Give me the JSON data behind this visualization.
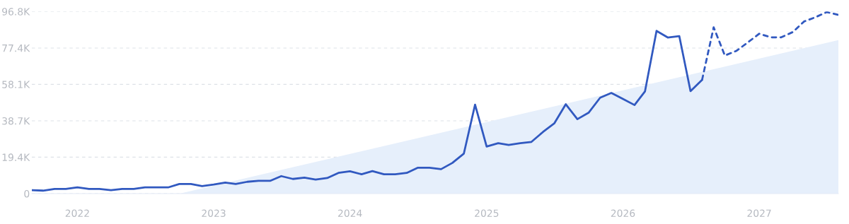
{
  "chart_data": {
    "type": "line",
    "grid": "y",
    "marker": "none",
    "xlim": [
      "2021-09",
      "2027-08"
    ],
    "xticks": [
      {
        "value": "2022-01",
        "label": "2022"
      },
      {
        "value": "2023-01",
        "label": "2023"
      },
      {
        "value": "2024-01",
        "label": "2024"
      },
      {
        "value": "2025-01",
        "label": "2025"
      },
      {
        "value": "2026-01",
        "label": "2026"
      },
      {
        "value": "2027-01",
        "label": "2027"
      }
    ],
    "ylim": [
      0,
      96800
    ],
    "yticks": [
      0,
      {
        "value": 19400,
        "label": "19.4K"
      },
      {
        "value": 38700,
        "label": "38.7K"
      },
      {
        "value": 58100,
        "label": "58.1K"
      },
      {
        "value": 77400,
        "label": "77.4K"
      },
      {
        "value": 96800,
        "label": "96.8K"
      }
    ],
    "series": [
      {
        "type": "area",
        "color": "#e6effb",
        "x": [
          "2022-10",
          "2027-08"
        ],
        "values": [
          0,
          81600
        ]
      },
      {
        "line_style": "solid",
        "color": "#3159c0",
        "x": [
          "2021-09",
          "2021-10",
          "2021-11",
          "2021-12",
          "2022-01",
          "2022-02",
          "2022-03",
          "2022-04",
          "2022-05",
          "2022-06",
          "2022-07",
          "2022-08",
          "2022-09",
          "2022-10",
          "2022-11",
          "2022-12",
          "2023-01",
          "2023-02",
          "2023-03",
          "2023-04",
          "2023-05",
          "2023-06",
          "2023-07",
          "2023-08",
          "2023-09",
          "2023-10",
          "2023-11",
          "2023-12",
          "2024-01",
          "2024-02",
          "2024-03",
          "2024-04",
          "2024-05",
          "2024-06",
          "2024-07",
          "2024-08",
          "2024-09",
          "2024-10",
          "2024-11",
          "2024-12",
          "2025-01",
          "2025-02",
          "2025-03",
          "2025-04",
          "2025-05",
          "2025-06",
          "2025-07",
          "2025-08",
          "2025-09",
          "2025-10",
          "2025-11",
          "2025-12",
          "2026-01",
          "2026-02",
          "2026-03",
          "2026-04",
          "2026-05",
          "2026-06",
          "2026-07",
          "2026-08"
        ],
        "values": [
          1800,
          1600,
          2500,
          2500,
          3300,
          2500,
          2500,
          1800,
          2500,
          2500,
          3300,
          3300,
          3300,
          5100,
          5100,
          4000,
          4800,
          5900,
          5100,
          6300,
          6800,
          6800,
          9300,
          7800,
          8500,
          7500,
          8300,
          11000,
          11900,
          10300,
          12000,
          10300,
          10300,
          11000,
          13800,
          13800,
          13000,
          16300,
          21300,
          47300,
          25000,
          26800,
          25900,
          26800,
          27500,
          32800,
          37300,
          47500,
          39600,
          43000,
          51000,
          53500,
          50300,
          47100,
          54300,
          86500,
          83000,
          83700,
          54500,
          60500
        ]
      },
      {
        "line_style": "dotted",
        "color": "#3159c0",
        "x": [
          "2026-08",
          "2026-09",
          "2026-10",
          "2026-11",
          "2026-12",
          "2027-01",
          "2027-02",
          "2027-03",
          "2027-04",
          "2027-05",
          "2027-06",
          "2027-07",
          "2027-08"
        ],
        "values": [
          60500,
          88400,
          73400,
          75900,
          80300,
          85000,
          83100,
          83100,
          85900,
          91500,
          93800,
          96500,
          95000
        ]
      }
    ]
  }
}
